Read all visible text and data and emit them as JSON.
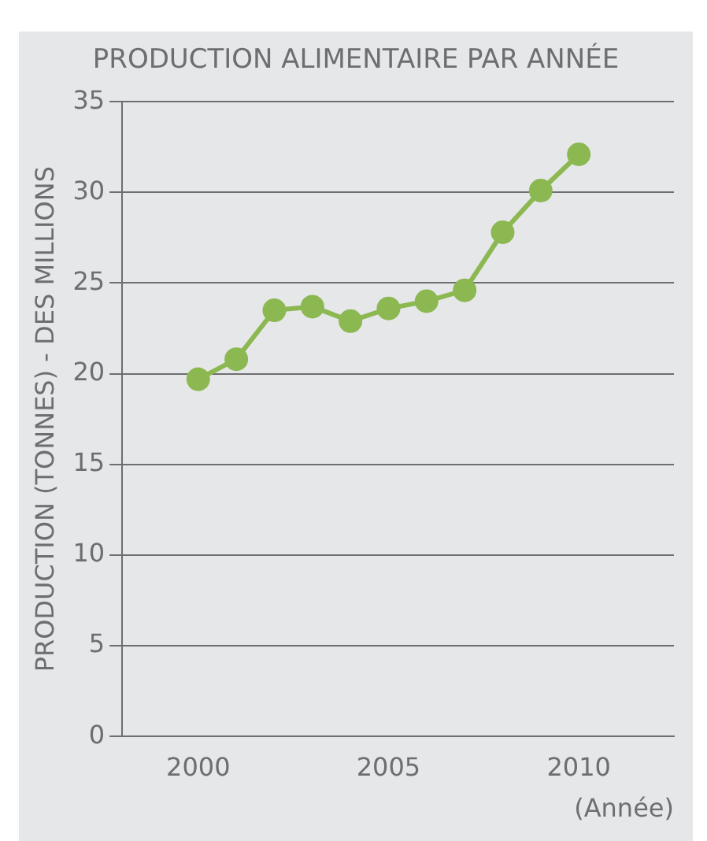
{
  "chart_data": {
    "type": "line",
    "title": "PRODUCTION ALIMENTAIRE PAR ANNÉE",
    "ylabel": "PRODUCTION (TONNES) - DES MILLIONS",
    "xlabel": "(Année)",
    "x": [
      2000,
      2001,
      2002,
      2003,
      2004,
      2005,
      2006,
      2007,
      2008,
      2009,
      2010
    ],
    "series": [
      {
        "color": "#8cb852",
        "values": [
          19.7,
          20.8,
          23.5,
          23.7,
          22.9,
          23.6,
          24.0,
          24.6,
          27.8,
          30.1,
          32.1
        ]
      }
    ],
    "xlim": [
      1998,
      2012.5
    ],
    "xticks": [
      2000,
      2005,
      2010
    ],
    "ylim": [
      0,
      35
    ],
    "yticks": [
      0,
      5,
      10,
      15,
      20,
      25,
      30,
      35
    ],
    "grid": "y",
    "marker": "circle",
    "line_style": "solid",
    "legend": false
  }
}
